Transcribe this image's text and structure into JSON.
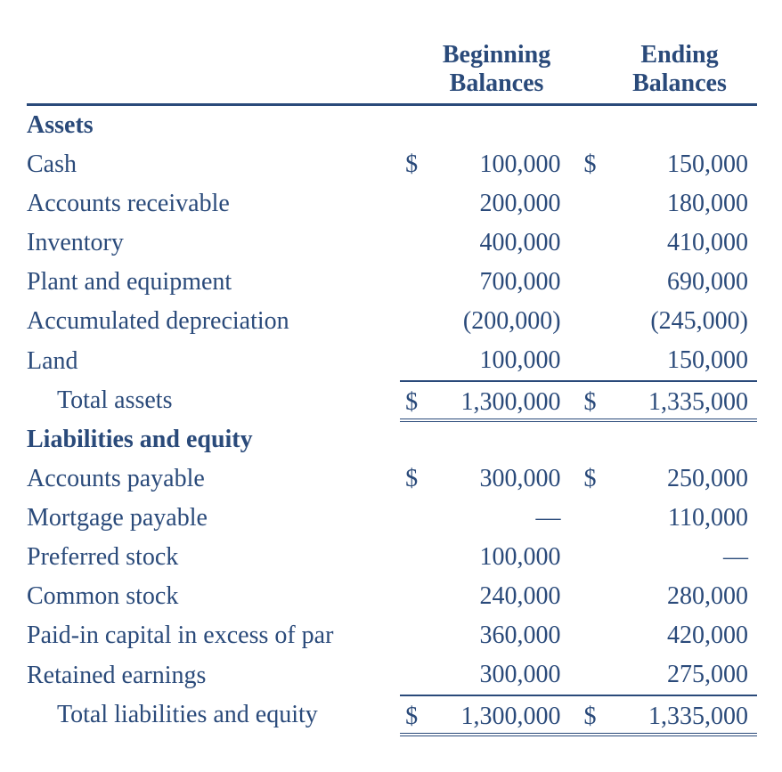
{
  "colors": {
    "text": "#2a4a7a",
    "background": "#ffffff",
    "rule": "#2a4a7a"
  },
  "typography": {
    "base_fontsize_pt": 21,
    "header_weight": "bold",
    "section_weight": "bold",
    "font_family": "Georgia, Times New Roman, serif"
  },
  "table": {
    "headers": {
      "col1_line1": "Beginning",
      "col1_line2": "Balances",
      "col2_line1": "Ending",
      "col2_line2": "Balances"
    },
    "sections": {
      "assets": {
        "title": "Assets",
        "rows": [
          {
            "label": "Cash",
            "beg_sym": "$",
            "beg": "100,000",
            "end_sym": "$",
            "end": "150,000"
          },
          {
            "label": "Accounts receivable",
            "beg_sym": "",
            "beg": "200,000",
            "end_sym": "",
            "end": "180,000"
          },
          {
            "label": "Inventory",
            "beg_sym": "",
            "beg": "400,000",
            "end_sym": "",
            "end": "410,000"
          },
          {
            "label": "Plant and equipment",
            "beg_sym": "",
            "beg": "700,000",
            "end_sym": "",
            "end": "690,000"
          },
          {
            "label": "Accumulated depreciation",
            "beg_sym": "",
            "beg": "(200,000)",
            "end_sym": "",
            "end": "(245,000)"
          },
          {
            "label": "Land",
            "beg_sym": "",
            "beg": "100,000",
            "end_sym": "",
            "end": "150,000"
          }
        ],
        "total": {
          "label": "Total assets",
          "beg_sym": "$",
          "beg": "1,300,000",
          "end_sym": "$",
          "end": "1,335,000"
        }
      },
      "liab_equity": {
        "title": "Liabilities and equity",
        "rows": [
          {
            "label": "Accounts payable",
            "beg_sym": "$",
            "beg": "300,000",
            "end_sym": "$",
            "end": "250,000"
          },
          {
            "label": "Mortgage payable",
            "beg_sym": "",
            "beg": "—",
            "end_sym": "",
            "end": "110,000"
          },
          {
            "label": "Preferred stock",
            "beg_sym": "",
            "beg": "100,000",
            "end_sym": "",
            "end": "—"
          },
          {
            "label": "Common stock",
            "beg_sym": "",
            "beg": "240,000",
            "end_sym": "",
            "end": "280,000"
          },
          {
            "label": "Paid-in capital in excess of par",
            "beg_sym": "",
            "beg": "360,000",
            "end_sym": "",
            "end": "420,000"
          },
          {
            "label": "Retained earnings",
            "beg_sym": "",
            "beg": "300,000",
            "end_sym": "",
            "end": "275,000"
          }
        ],
        "total": {
          "label": "Total liabilities and equity",
          "beg_sym": "$",
          "beg": "1,300,000",
          "end_sym": "$",
          "end": "1,335,000"
        }
      }
    }
  }
}
